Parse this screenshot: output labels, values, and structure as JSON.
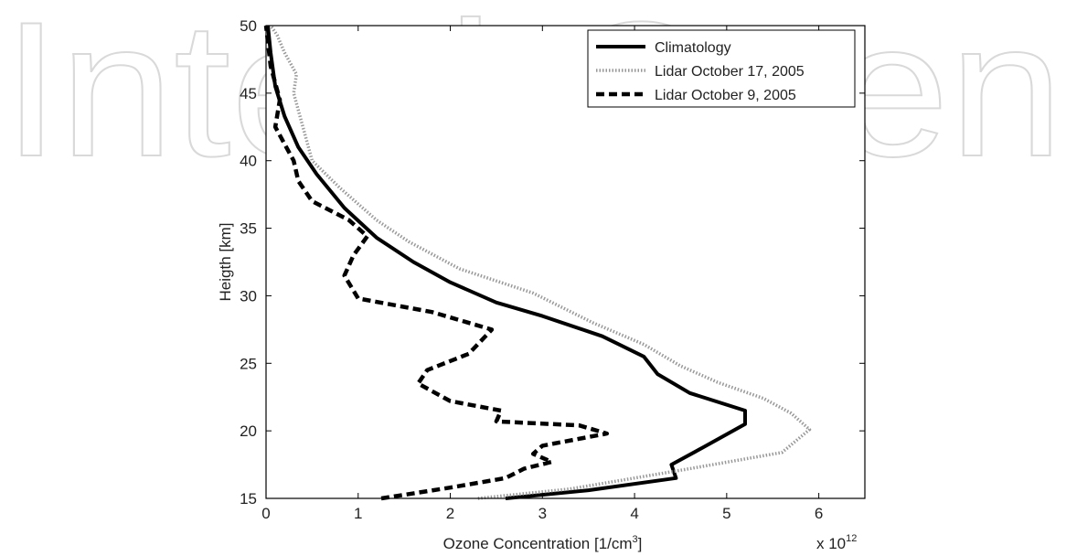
{
  "chart_data": {
    "type": "line",
    "xlabel": "Ozone Concentration [1/cm³]",
    "xlabel_parts": {
      "main": "Ozone Concentration [1/cm",
      "sup": "3",
      "end": "]"
    },
    "x_multiplier": {
      "base": "x 10",
      "exp": "12"
    },
    "ylabel": "Heigth [km]",
    "xlim": [
      0,
      6.5
    ],
    "ylim": [
      15,
      50
    ],
    "xticks": [
      0,
      1,
      2,
      3,
      4,
      5,
      6
    ],
    "yticks": [
      15,
      20,
      25,
      30,
      35,
      40,
      45,
      50
    ],
    "grid": false,
    "legend_position": "top-right",
    "series": [
      {
        "name": "Climatology",
        "style": "solid",
        "color": "#000000",
        "points": [
          [
            2.6,
            15
          ],
          [
            3.5,
            15.6
          ],
          [
            4.45,
            16.5
          ],
          [
            4.4,
            17.5
          ],
          [
            4.75,
            18.8
          ],
          [
            5.2,
            20.5
          ],
          [
            5.2,
            21.5
          ],
          [
            4.6,
            22.8
          ],
          [
            4.25,
            24.2
          ],
          [
            4.1,
            25.5
          ],
          [
            3.65,
            27
          ],
          [
            3.0,
            28.5
          ],
          [
            2.5,
            29.5
          ],
          [
            2.0,
            31
          ],
          [
            1.6,
            32.5
          ],
          [
            1.2,
            34.3
          ],
          [
            0.85,
            36.5
          ],
          [
            0.55,
            39
          ],
          [
            0.35,
            41
          ],
          [
            0.2,
            43.3
          ],
          [
            0.1,
            45.5
          ],
          [
            0.05,
            48
          ],
          [
            0.02,
            50
          ]
        ]
      },
      {
        "name": "Lidar October 17, 2005",
        "style": "dotted",
        "color": "#999999",
        "points": [
          [
            2.3,
            15
          ],
          [
            3.3,
            15.7
          ],
          [
            4.6,
            17.2
          ],
          [
            5.6,
            18.4
          ],
          [
            5.9,
            20.1
          ],
          [
            5.7,
            21.3
          ],
          [
            5.4,
            22.4
          ],
          [
            4.9,
            23.6
          ],
          [
            4.5,
            24.8
          ],
          [
            4.1,
            26.4
          ],
          [
            3.55,
            28
          ],
          [
            2.9,
            30.2
          ],
          [
            2.1,
            32
          ],
          [
            1.55,
            34
          ],
          [
            1.2,
            35.6
          ],
          [
            0.8,
            38
          ],
          [
            0.5,
            40
          ],
          [
            0.4,
            42.5
          ],
          [
            0.3,
            45
          ],
          [
            0.33,
            46.4
          ],
          [
            0.2,
            48
          ],
          [
            0.12,
            49.3
          ],
          [
            0.05,
            50
          ]
        ]
      },
      {
        "name": "Lidar October 9, 2005",
        "style": "dashed",
        "color": "#000000",
        "points": [
          [
            1.25,
            15
          ],
          [
            2.0,
            15.8
          ],
          [
            2.6,
            16.5
          ],
          [
            2.8,
            17.2
          ],
          [
            3.1,
            17.7
          ],
          [
            2.9,
            18.3
          ],
          [
            3.0,
            18.9
          ],
          [
            3.7,
            19.8
          ],
          [
            3.4,
            20.4
          ],
          [
            2.5,
            20.7
          ],
          [
            2.55,
            21.5
          ],
          [
            2.0,
            22.2
          ],
          [
            1.65,
            23.5
          ],
          [
            1.75,
            24.5
          ],
          [
            2.2,
            25.7
          ],
          [
            2.45,
            27.5
          ],
          [
            1.8,
            28.8
          ],
          [
            1.0,
            29.8
          ],
          [
            0.85,
            31.5
          ],
          [
            0.95,
            33
          ],
          [
            1.1,
            34.4
          ],
          [
            0.9,
            35.6
          ],
          [
            0.5,
            37
          ],
          [
            0.35,
            38.5
          ],
          [
            0.3,
            40
          ],
          [
            0.1,
            42.5
          ],
          [
            0.15,
            44.5
          ],
          [
            0.05,
            47
          ],
          [
            0.0,
            50
          ]
        ]
      }
    ]
  },
  "watermark": {
    "text": "IntechOpen",
    "color": "#dddddd"
  }
}
